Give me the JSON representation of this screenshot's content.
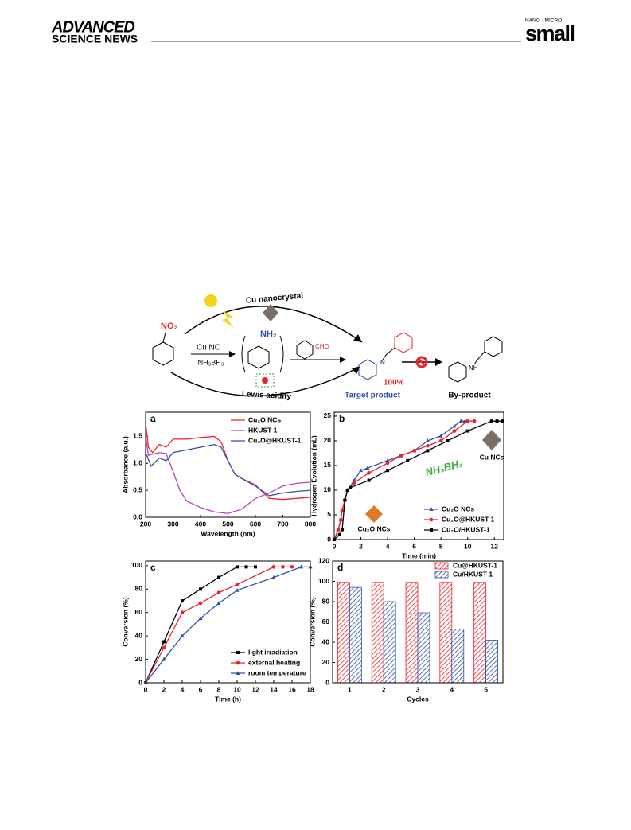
{
  "header": {
    "brand_top": "ADVANCED",
    "brand_bottom": "SCIENCE NEWS",
    "journal_small": "NANO · MICRO",
    "journal": "small"
  },
  "scheme": {
    "top_label": "Cu nanocrystal",
    "nitro": "NO₂",
    "amine": "NH₂",
    "catalyst": "Cu NC",
    "reductant": "NH₃BH₃",
    "aldehyde": "CHO",
    "imine_n": "N",
    "yield": "100%",
    "target": "Target product",
    "amine_n": "NH",
    "byproduct": "By-product",
    "bottom_label": "Lewis acidity"
  },
  "chart_data": [
    {
      "type": "line",
      "panel": "a",
      "xlabel": "Wavelength (nm)",
      "ylabel": "Absorbance (a.u.)",
      "xlim": [
        200,
        800
      ],
      "xticks": [
        200,
        300,
        400,
        500,
        600,
        700,
        800
      ],
      "ylim": [
        0,
        1.95
      ],
      "yticks": [
        {
          "value": 0,
          "label": "0.0"
        },
        0.5,
        {
          "value": 1,
          "label": "1.0"
        },
        1.5
      ],
      "legend": "upper right",
      "series": [
        {
          "name": "Cu₂O NCs",
          "color": "#e8242a",
          "x": [
            200,
            210,
            225,
            250,
            275,
            300,
            350,
            400,
            450,
            475,
            500,
            525,
            550,
            600,
            650,
            700,
            750,
            800
          ],
          "values": [
            1.75,
            1.3,
            1.2,
            1.35,
            1.3,
            1.45,
            1.45,
            1.48,
            1.5,
            1.4,
            1.05,
            0.8,
            0.72,
            0.6,
            0.35,
            0.33,
            0.35,
            0.37
          ]
        },
        {
          "name": "HKUST-1",
          "color": "#c040c0",
          "x": [
            200,
            210,
            250,
            275,
            300,
            325,
            350,
            400,
            450,
            500,
            550,
            600,
            650,
            700,
            750,
            800
          ],
          "values": [
            1.5,
            1.15,
            1.2,
            1.18,
            0.85,
            0.5,
            0.3,
            0.18,
            0.1,
            0.07,
            0.15,
            0.35,
            0.45,
            0.58,
            0.63,
            0.65
          ]
        },
        {
          "name": "Cu₂O@HKUST-1",
          "color": "#3050a8",
          "x": [
            200,
            220,
            250,
            275,
            300,
            350,
            400,
            450,
            475,
            500,
            525,
            550,
            600,
            650,
            700,
            750,
            800
          ],
          "values": [
            1.2,
            0.95,
            1.1,
            1.05,
            1.2,
            1.25,
            1.3,
            1.35,
            1.3,
            1.05,
            0.8,
            0.72,
            0.58,
            0.4,
            0.45,
            0.48,
            0.5
          ]
        }
      ]
    },
    {
      "type": "line",
      "panel": "b",
      "xlabel": "Time (min)",
      "ylabel": "Hydrogen Evolution (mL)",
      "xlim": [
        0,
        12.7
      ],
      "xticks": [
        0,
        2,
        4,
        6,
        8,
        10,
        12
      ],
      "ylim": [
        0,
        25.8
      ],
      "yticks": [
        0,
        5,
        10,
        15,
        20,
        25
      ],
      "legend": "lower right",
      "annotations": [
        "NH₃BH₃",
        "Cu NCs",
        "Cu₂O NCs"
      ],
      "series": [
        {
          "name": "Cu₂O NCs",
          "color": "#3050a8",
          "marker": "triangle",
          "x": [
            0,
            0.3,
            0.5,
            0.6,
            0.8,
            1,
            1.5,
            2,
            2.5,
            4,
            5,
            6,
            7,
            8,
            9,
            9.5,
            9.8
          ],
          "values": [
            0,
            2,
            4,
            6,
            8,
            10,
            12,
            14,
            14.5,
            16,
            17,
            18,
            20,
            21,
            23,
            24,
            24
          ]
        },
        {
          "name": "Cu₂O@HKUST-1",
          "color": "#e8242a",
          "marker": "circle",
          "x": [
            0,
            0.3,
            0.5,
            0.6,
            0.8,
            1,
            1.5,
            2.6,
            4,
            5,
            6,
            7,
            8,
            9,
            10,
            10.5
          ],
          "values": [
            0,
            2,
            4,
            6,
            8,
            10,
            11.5,
            13.5,
            15.5,
            17,
            18,
            19,
            20,
            22,
            24,
            24
          ]
        },
        {
          "name": "Cu₂O/HKUST-1",
          "color": "#000000",
          "marker": "square",
          "x": [
            0,
            0.4,
            0.6,
            0.8,
            1,
            1.2,
            2.6,
            4,
            5.5,
            7,
            8.5,
            10,
            11.8,
            12.2,
            12.6
          ],
          "values": [
            0,
            1,
            2,
            8,
            10,
            10.5,
            12,
            14,
            16,
            18,
            20,
            22,
            24,
            24,
            24
          ]
        }
      ]
    },
    {
      "type": "line",
      "panel": "c",
      "xlabel": "Time (h)",
      "ylabel": "Conversion (%)",
      "xlim": [
        0,
        18
      ],
      "xticks": [
        0,
        2,
        4,
        6,
        8,
        10,
        12,
        14,
        16,
        18
      ],
      "ylim": [
        0,
        104
      ],
      "yticks": [
        0,
        20,
        40,
        60,
        80,
        100
      ],
      "legend": "lower right",
      "series": [
        {
          "name": "light irradiation",
          "color": "#000000",
          "marker": "square",
          "x": [
            0,
            2,
            4,
            6,
            8,
            10,
            11,
            12
          ],
          "values": [
            0,
            35,
            70,
            80,
            90,
            99,
            99,
            99
          ]
        },
        {
          "name": "external heating",
          "color": "#e8242a",
          "marker": "circle",
          "x": [
            0,
            2,
            4,
            6,
            8,
            10,
            14,
            15,
            16
          ],
          "values": [
            0,
            30,
            60,
            68,
            77,
            84,
            99,
            99,
            99
          ]
        },
        {
          "name": "room temperature",
          "color": "#3050a8",
          "marker": "triangle",
          "x": [
            0,
            2,
            4,
            6,
            8,
            10,
            14,
            17,
            18
          ],
          "values": [
            0,
            20,
            40,
            55,
            68,
            79,
            90,
            99,
            99
          ]
        }
      ]
    },
    {
      "type": "bar",
      "panel": "d",
      "xlabel": "Cycles",
      "ylabel": "Conversion (%)",
      "categories": [
        "1",
        "2",
        "3",
        "4",
        "5"
      ],
      "ylim": [
        0,
        120
      ],
      "yticks": [
        0,
        20,
        40,
        60,
        80,
        100,
        120
      ],
      "legend": "upper right",
      "hatch": true,
      "series": [
        {
          "name": "Cu@HKUST-1",
          "color": "#e8242a",
          "values": [
            99,
            99,
            99,
            99,
            99
          ]
        },
        {
          "name": "Cu/HKUST-1",
          "color": "#3050a8",
          "values": [
            94,
            80,
            69,
            53,
            42
          ]
        }
      ]
    }
  ]
}
